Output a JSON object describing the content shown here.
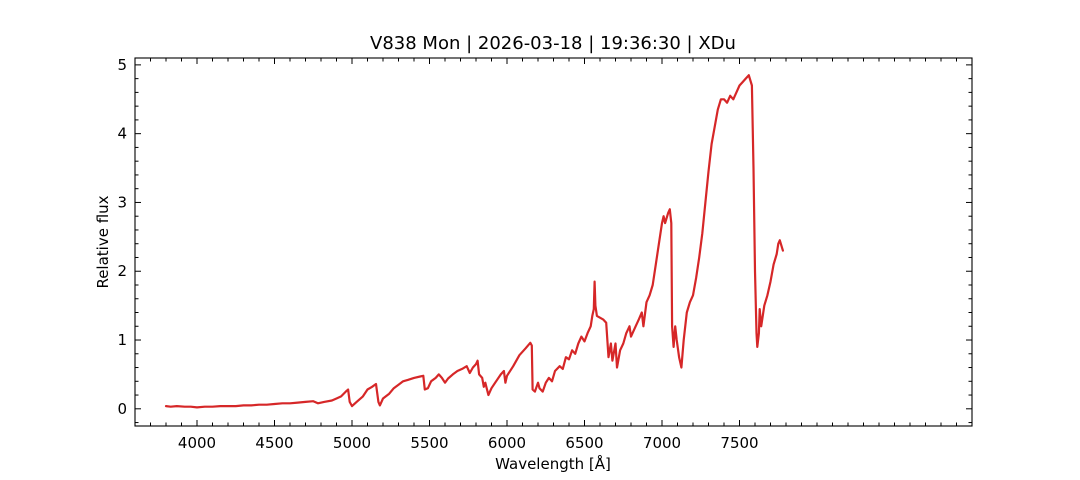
{
  "chart_data": {
    "type": "line",
    "title": "V838 Mon | 2026-03-18 | 19:36:30 | XDu",
    "xlabel": "Wavelength [Å]",
    "ylabel": "Relative flux",
    "xlim": [
      3600,
      9000
    ],
    "ylim": [
      -0.25,
      5.1
    ],
    "x_ticks": [
      4000,
      4500,
      5000,
      5500,
      6000,
      6500,
      7000,
      7500
    ],
    "y_ticks": [
      0,
      1,
      2,
      3,
      4,
      5
    ],
    "x_minor_step": 100,
    "y_minor_step": 0.2,
    "tick_direction": "in",
    "grid": false,
    "legend": "none",
    "series": [
      {
        "color": "#d62728",
        "points": [
          [
            3800,
            0.04
          ],
          [
            3830,
            0.03
          ],
          [
            3870,
            0.04
          ],
          [
            3920,
            0.03
          ],
          [
            3960,
            0.03
          ],
          [
            4000,
            0.02
          ],
          [
            4050,
            0.03
          ],
          [
            4100,
            0.03
          ],
          [
            4150,
            0.04
          ],
          [
            4200,
            0.04
          ],
          [
            4250,
            0.04
          ],
          [
            4300,
            0.05
          ],
          [
            4350,
            0.05
          ],
          [
            4400,
            0.06
          ],
          [
            4450,
            0.06
          ],
          [
            4500,
            0.07
          ],
          [
            4550,
            0.08
          ],
          [
            4600,
            0.08
          ],
          [
            4650,
            0.09
          ],
          [
            4700,
            0.1
          ],
          [
            4750,
            0.11
          ],
          [
            4780,
            0.08
          ],
          [
            4820,
            0.1
          ],
          [
            4870,
            0.12
          ],
          [
            4900,
            0.15
          ],
          [
            4930,
            0.18
          ],
          [
            4960,
            0.25
          ],
          [
            4975,
            0.28
          ],
          [
            4985,
            0.1
          ],
          [
            5000,
            0.04
          ],
          [
            5030,
            0.1
          ],
          [
            5070,
            0.18
          ],
          [
            5100,
            0.28
          ],
          [
            5130,
            0.32
          ],
          [
            5155,
            0.36
          ],
          [
            5170,
            0.1
          ],
          [
            5180,
            0.05
          ],
          [
            5200,
            0.15
          ],
          [
            5240,
            0.22
          ],
          [
            5270,
            0.3
          ],
          [
            5300,
            0.35
          ],
          [
            5330,
            0.4
          ],
          [
            5360,
            0.42
          ],
          [
            5400,
            0.45
          ],
          [
            5440,
            0.47
          ],
          [
            5460,
            0.48
          ],
          [
            5470,
            0.28
          ],
          [
            5490,
            0.3
          ],
          [
            5510,
            0.4
          ],
          [
            5540,
            0.45
          ],
          [
            5560,
            0.5
          ],
          [
            5580,
            0.45
          ],
          [
            5600,
            0.38
          ],
          [
            5620,
            0.44
          ],
          [
            5650,
            0.5
          ],
          [
            5680,
            0.55
          ],
          [
            5710,
            0.58
          ],
          [
            5740,
            0.62
          ],
          [
            5760,
            0.52
          ],
          [
            5780,
            0.6
          ],
          [
            5800,
            0.65
          ],
          [
            5810,
            0.7
          ],
          [
            5820,
            0.5
          ],
          [
            5840,
            0.45
          ],
          [
            5850,
            0.32
          ],
          [
            5860,
            0.38
          ],
          [
            5880,
            0.2
          ],
          [
            5900,
            0.3
          ],
          [
            5930,
            0.4
          ],
          [
            5960,
            0.5
          ],
          [
            5980,
            0.55
          ],
          [
            5990,
            0.38
          ],
          [
            6000,
            0.48
          ],
          [
            6040,
            0.62
          ],
          [
            6080,
            0.78
          ],
          [
            6120,
            0.88
          ],
          [
            6150,
            0.96
          ],
          [
            6160,
            0.92
          ],
          [
            6165,
            0.28
          ],
          [
            6180,
            0.25
          ],
          [
            6200,
            0.38
          ],
          [
            6210,
            0.3
          ],
          [
            6230,
            0.25
          ],
          [
            6250,
            0.38
          ],
          [
            6270,
            0.45
          ],
          [
            6290,
            0.4
          ],
          [
            6310,
            0.55
          ],
          [
            6340,
            0.62
          ],
          [
            6360,
            0.58
          ],
          [
            6380,
            0.75
          ],
          [
            6400,
            0.72
          ],
          [
            6420,
            0.85
          ],
          [
            6440,
            0.8
          ],
          [
            6460,
            0.95
          ],
          [
            6480,
            1.05
          ],
          [
            6500,
            0.98
          ],
          [
            6520,
            1.1
          ],
          [
            6540,
            1.2
          ],
          [
            6550,
            1.35
          ],
          [
            6560,
            1.45
          ],
          [
            6565,
            1.85
          ],
          [
            6570,
            1.5
          ],
          [
            6580,
            1.35
          ],
          [
            6620,
            1.3
          ],
          [
            6640,
            1.25
          ],
          [
            6655,
            0.75
          ],
          [
            6670,
            0.95
          ],
          [
            6680,
            0.7
          ],
          [
            6700,
            0.95
          ],
          [
            6710,
            0.6
          ],
          [
            6730,
            0.85
          ],
          [
            6750,
            0.95
          ],
          [
            6770,
            1.1
          ],
          [
            6790,
            1.2
          ],
          [
            6800,
            1.05
          ],
          [
            6820,
            1.15
          ],
          [
            6850,
            1.3
          ],
          [
            6870,
            1.4
          ],
          [
            6880,
            1.2
          ],
          [
            6900,
            1.55
          ],
          [
            6920,
            1.65
          ],
          [
            6940,
            1.8
          ],
          [
            6960,
            2.1
          ],
          [
            6980,
            2.4
          ],
          [
            7000,
            2.7
          ],
          [
            7010,
            2.8
          ],
          [
            7020,
            2.7
          ],
          [
            7040,
            2.85
          ],
          [
            7050,
            2.9
          ],
          [
            7060,
            2.7
          ],
          [
            7065,
            1.2
          ],
          [
            7075,
            0.9
          ],
          [
            7085,
            1.2
          ],
          [
            7095,
            1.0
          ],
          [
            7110,
            0.75
          ],
          [
            7125,
            0.6
          ],
          [
            7140,
            1.0
          ],
          [
            7160,
            1.4
          ],
          [
            7180,
            1.55
          ],
          [
            7200,
            1.65
          ],
          [
            7220,
            1.9
          ],
          [
            7240,
            2.2
          ],
          [
            7260,
            2.55
          ],
          [
            7280,
            3.0
          ],
          [
            7300,
            3.45
          ],
          [
            7320,
            3.85
          ],
          [
            7340,
            4.1
          ],
          [
            7360,
            4.35
          ],
          [
            7380,
            4.5
          ],
          [
            7400,
            4.5
          ],
          [
            7420,
            4.45
          ],
          [
            7440,
            4.55
          ],
          [
            7460,
            4.5
          ],
          [
            7480,
            4.6
          ],
          [
            7500,
            4.7
          ],
          [
            7520,
            4.75
          ],
          [
            7540,
            4.8
          ],
          [
            7560,
            4.85
          ],
          [
            7580,
            4.7
          ],
          [
            7590,
            3.5
          ],
          [
            7600,
            2.0
          ],
          [
            7610,
            1.1
          ],
          [
            7615,
            0.9
          ],
          [
            7625,
            1.1
          ],
          [
            7630,
            1.45
          ],
          [
            7640,
            1.2
          ],
          [
            7660,
            1.5
          ],
          [
            7680,
            1.65
          ],
          [
            7700,
            1.85
          ],
          [
            7720,
            2.1
          ],
          [
            7740,
            2.25
          ],
          [
            7750,
            2.4
          ],
          [
            7760,
            2.45
          ],
          [
            7780,
            2.3
          ]
        ]
      }
    ]
  }
}
